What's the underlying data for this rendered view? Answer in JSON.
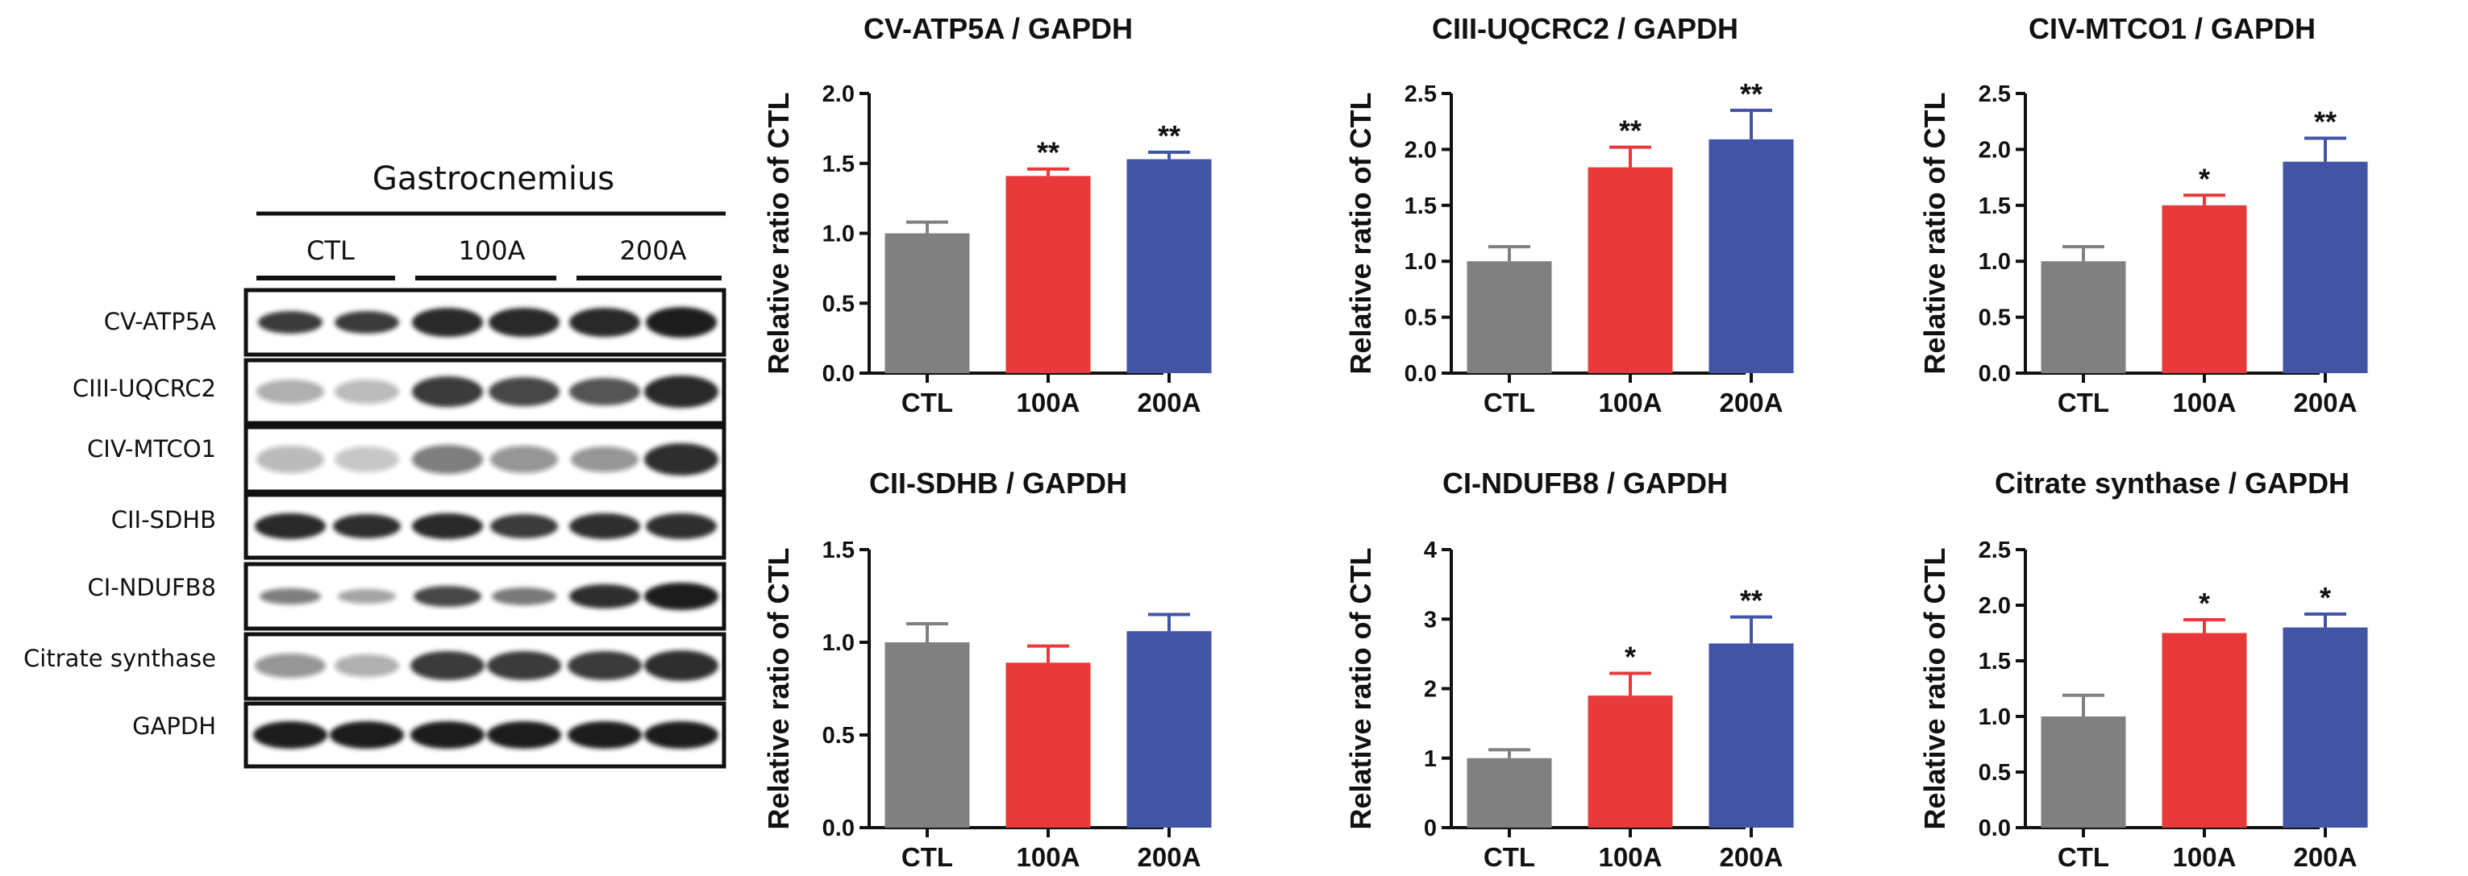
{
  "western_blot": {
    "tissue": "Gastrocnemius",
    "groups": [
      "CTL",
      "100A",
      "200A"
    ],
    "proteins": [
      "CV-ATP5A",
      "CIII-UQCRC2",
      "CIV-MTCO1",
      "CII-SDHB",
      "CI-NDUFB8",
      "Citrate synthase",
      "GAPDH"
    ]
  },
  "chart_data": [
    {
      "type": "bar",
      "title": "CV-ATP5A / GAPDH",
      "ylabel": "Relative ratio of CTL",
      "categories": [
        "CTL",
        "100A",
        "200A"
      ],
      "values": [
        1.0,
        1.41,
        1.53
      ],
      "errors": [
        0.08,
        0.05,
        0.05
      ],
      "significance": [
        "",
        "**",
        "**"
      ],
      "colors": [
        "#808080",
        "#e83a3a",
        "#4254a6"
      ],
      "ylim": [
        0,
        2.0
      ],
      "yticks": [
        0.0,
        0.5,
        1.0,
        1.5,
        2.0
      ],
      "ytick_labels": [
        "0.0",
        "0.5",
        "1.0",
        "1.5",
        "2.0"
      ]
    },
    {
      "type": "bar",
      "title": "CIII-UQCRC2 / GAPDH",
      "ylabel": "Relative ratio of CTL",
      "categories": [
        "CTL",
        "100A",
        "200A"
      ],
      "values": [
        1.0,
        1.84,
        2.09
      ],
      "errors": [
        0.13,
        0.18,
        0.26
      ],
      "significance": [
        "",
        "**",
        "**"
      ],
      "colors": [
        "#808080",
        "#e83a3a",
        "#4254a6"
      ],
      "ylim": [
        0,
        2.5
      ],
      "yticks": [
        0.0,
        0.5,
        1.0,
        1.5,
        2.0,
        2.5
      ],
      "ytick_labels": [
        "0.0",
        "0.5",
        "1.0",
        "1.5",
        "2.0",
        "2.5"
      ]
    },
    {
      "type": "bar",
      "title": "CIV-MTCO1 / GAPDH",
      "ylabel": "Relative ratio of CTL",
      "categories": [
        "CTL",
        "100A",
        "200A"
      ],
      "values": [
        1.0,
        1.5,
        1.89
      ],
      "errors": [
        0.13,
        0.09,
        0.21
      ],
      "significance": [
        "",
        "*",
        "**"
      ],
      "colors": [
        "#808080",
        "#e83a3a",
        "#4254a6"
      ],
      "ylim": [
        0,
        2.5
      ],
      "yticks": [
        0.0,
        0.5,
        1.0,
        1.5,
        2.0,
        2.5
      ],
      "ytick_labels": [
        "0.0",
        "0.5",
        "1.0",
        "1.5",
        "2.0",
        "2.5"
      ]
    },
    {
      "type": "bar",
      "title": "CII-SDHB / GAPDH",
      "ylabel": "Relative ratio of CTL",
      "categories": [
        "CTL",
        "100A",
        "200A"
      ],
      "values": [
        1.0,
        0.89,
        1.06
      ],
      "errors": [
        0.1,
        0.09,
        0.09
      ],
      "significance": [
        "",
        "",
        ""
      ],
      "colors": [
        "#808080",
        "#e83a3a",
        "#4254a6"
      ],
      "ylim": [
        0,
        1.5
      ],
      "yticks": [
        0.0,
        0.5,
        1.0,
        1.5
      ],
      "ytick_labels": [
        "0.0",
        "0.5",
        "1.0",
        "1.5"
      ]
    },
    {
      "type": "bar",
      "title": "CI-NDUFB8 / GAPDH",
      "ylabel": "Relative ratio of CTL",
      "categories": [
        "CTL",
        "100A",
        "200A"
      ],
      "values": [
        1.0,
        1.9,
        2.65
      ],
      "errors": [
        0.12,
        0.32,
        0.38
      ],
      "significance": [
        "",
        "*",
        "**"
      ],
      "colors": [
        "#808080",
        "#e83a3a",
        "#4254a6"
      ],
      "ylim": [
        0,
        4
      ],
      "yticks": [
        0,
        1,
        2,
        3,
        4
      ],
      "ytick_labels": [
        "0",
        "1",
        "2",
        "3",
        "4"
      ]
    },
    {
      "type": "bar",
      "title": "Citrate synthase / GAPDH",
      "ylabel": "Relative ratio of CTL",
      "categories": [
        "CTL",
        "100A",
        "200A"
      ],
      "values": [
        1.0,
        1.75,
        1.8
      ],
      "errors": [
        0.19,
        0.12,
        0.12
      ],
      "significance": [
        "",
        "*",
        "*"
      ],
      "colors": [
        "#808080",
        "#e83a3a",
        "#4254a6"
      ],
      "ylim": [
        0,
        2.5
      ],
      "yticks": [
        0.0,
        0.5,
        1.0,
        1.5,
        2.0,
        2.5
      ],
      "ytick_labels": [
        "0.0",
        "0.5",
        "1.0",
        "1.5",
        "2.0",
        "2.5"
      ]
    }
  ]
}
